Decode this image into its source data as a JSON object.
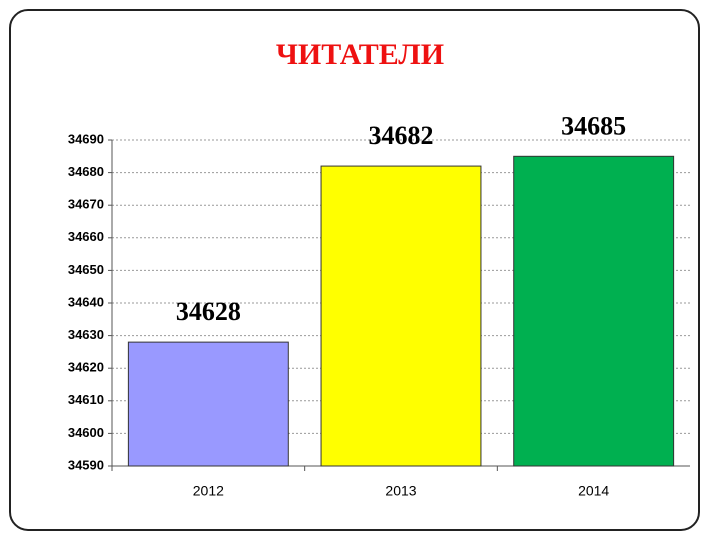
{
  "chart_data": {
    "type": "bar",
    "title": "ЧИТАТЕЛИ",
    "categories": [
      "2012",
      "2013",
      "2014"
    ],
    "values": [
      34628,
      34682,
      34685
    ],
    "colors": [
      "#9999ff",
      "#ffff00",
      "#00b050"
    ],
    "ylim": [
      34590,
      34690
    ],
    "yticks": [
      34590,
      34600,
      34610,
      34620,
      34630,
      34640,
      34650,
      34660,
      34670,
      34680,
      34690
    ],
    "grid": true
  }
}
